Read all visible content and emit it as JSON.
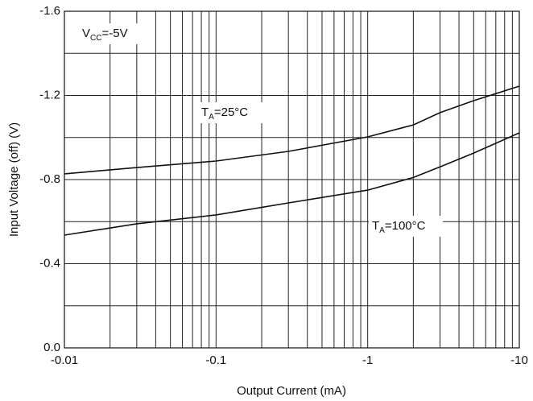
{
  "chart_data": {
    "type": "line",
    "x_label": "Output Current (mA)",
    "y_label": "Input Voltage (off) (V)",
    "xscale": "log",
    "xlim": [
      -0.01,
      -10
    ],
    "xticks": [
      -0.01,
      -0.1,
      -1,
      -10
    ],
    "xminor": [
      -0.02,
      -0.03,
      -0.04,
      -0.05,
      -0.06,
      -0.07,
      -0.08,
      -0.09,
      -0.2,
      -0.3,
      -0.4,
      -0.5,
      -0.6,
      -0.7,
      -0.8,
      -0.9,
      -2,
      -3,
      -4,
      -5,
      -6,
      -7,
      -8,
      -9
    ],
    "ylim": [
      0,
      -1.6
    ],
    "yticks": [
      {
        "value": 0,
        "label": "0.0"
      },
      -0.4,
      -0.8,
      -1.2,
      -1.6
    ],
    "yminor": [
      -0.2,
      -0.6,
      -1.0,
      -1.4
    ],
    "grid": true,
    "annotation": {
      "main": "V",
      "sub": "CC",
      "rest": "=-5V"
    },
    "x": [
      -0.01,
      -0.03,
      -0.1,
      -0.3,
      -1,
      -2,
      -3,
      -5,
      -10
    ],
    "series": [
      {
        "label": {
          "main": "T",
          "sub": "A",
          "rest": "=25°C"
        },
        "color": "#111111",
        "values": [
          -0.827,
          -0.857,
          -0.888,
          -0.934,
          -1.003,
          -1.06,
          -1.118,
          -1.175,
          -1.244
        ]
      },
      {
        "label": {
          "main": "T",
          "sub": "A",
          "rest": "=100°C"
        },
        "color": "#111111",
        "values": [
          -0.536,
          -0.59,
          -0.632,
          -0.689,
          -0.75,
          -0.81,
          -0.86,
          -0.926,
          -1.022
        ]
      }
    ]
  }
}
